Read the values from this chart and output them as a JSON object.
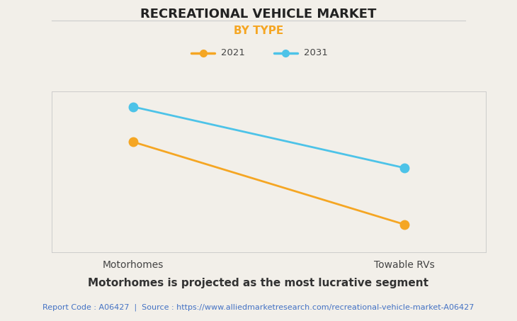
{
  "title": "RECREATIONAL VEHICLE MARKET",
  "subtitle": "BY TYPE",
  "categories": [
    "Motorhomes",
    "Towable RVs"
  ],
  "series": [
    {
      "label": "2021",
      "color": "#F5A623",
      "values": [
        0.72,
        0.18
      ]
    },
    {
      "label": "2031",
      "color": "#4DC3E8",
      "values": [
        0.95,
        0.55
      ]
    }
  ],
  "background_color": "#F2EFE9",
  "plot_bg_color": "#F2EFE9",
  "title_fontsize": 13,
  "subtitle_fontsize": 11,
  "subtitle_color": "#F5A623",
  "legend_fontsize": 9.5,
  "axis_label_fontsize": 10,
  "footer_text": "Motorhomes is projected as the most lucrative segment",
  "source_text": "Report Code : A06427  |  Source : https://www.alliedmarketresearch.com/recreational-vehicle-market-A06427",
  "source_color": "#4472C4",
  "footer_fontsize": 11,
  "source_fontsize": 8,
  "ylim": [
    0,
    1.05
  ],
  "xlim": [
    -0.3,
    1.3
  ],
  "grid_color": "#CCCCCC",
  "marker_size": 9,
  "line_width": 2
}
